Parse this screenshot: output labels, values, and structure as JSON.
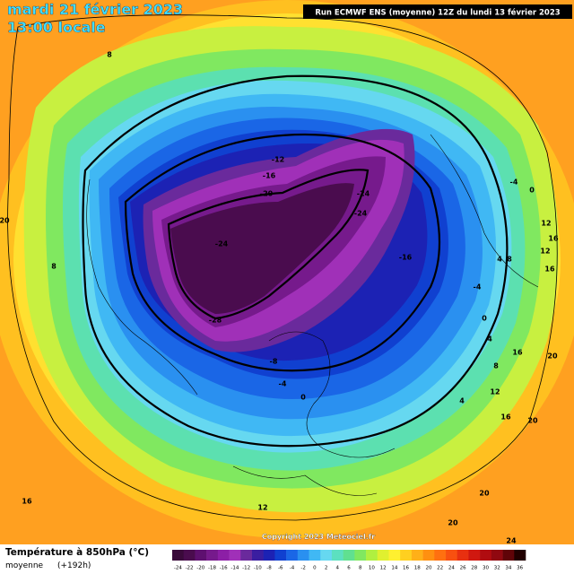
{
  "header": {
    "date": "mardi 21 février 2023",
    "time": "13:00 locale",
    "run": "Run ECMWF ENS (moyenne) 12Z du lundi 13 février 2023"
  },
  "copyright": "Copyright 2023 Meteociel.fr",
  "legend": {
    "title": "Température à 850hPa (°C)",
    "subtitle": "moyenne",
    "lead": "(+192h)",
    "ticks": [
      -24,
      -22,
      -20,
      -18,
      -16,
      -14,
      -12,
      -10,
      -8,
      -6,
      -4,
      -2,
      0,
      2,
      4,
      6,
      8,
      10,
      12,
      14,
      16,
      18,
      20,
      22,
      24,
      26,
      28,
      30,
      32,
      34,
      36
    ],
    "colors": [
      "#3a0a3a",
      "#4a0c4e",
      "#5e1070",
      "#761a8c",
      "#8c1fa6",
      "#a030b8",
      "#6a2a9c",
      "#3a1ea0",
      "#1c22b4",
      "#1040d0",
      "#1a66e6",
      "#2a90f0",
      "#40b8f4",
      "#66d8f0",
      "#5ce0c0",
      "#60e090",
      "#80e860",
      "#b0f040",
      "#e0f030",
      "#fff030",
      "#ffd020",
      "#ffb018",
      "#ff9010",
      "#ff7010",
      "#f85010",
      "#e83010",
      "#d01810",
      "#b00c10",
      "#900810",
      "#600408",
      "#200000"
    ]
  },
  "contour_labels": [
    -12,
    -16,
    -20,
    -24,
    -24,
    -24,
    -16,
    -28,
    -8,
    -4,
    0,
    -4,
    0,
    8,
    12,
    16,
    12,
    4,
    8,
    16,
    -4,
    0,
    4,
    8,
    12,
    16,
    20,
    16,
    20,
    20,
    20,
    24,
    16,
    12,
    20,
    8,
    4
  ]
}
